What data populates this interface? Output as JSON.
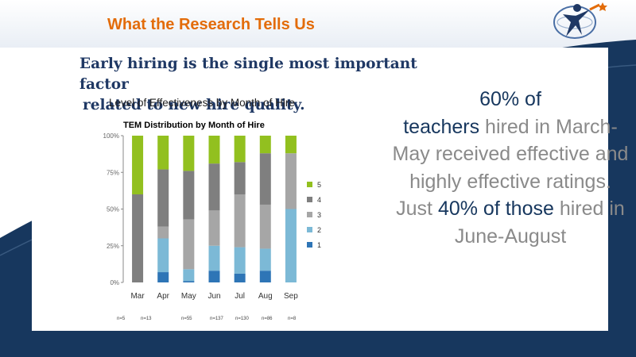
{
  "slide": {
    "title": "What the Research Tells Us",
    "headline_line1": "Early hiring is the single most important factor",
    "headline_line2": "related to new hire quality.",
    "caption": "Level of Effectiveness by Month of Hire"
  },
  "side": {
    "p1": "60% of",
    "p2": "teachers",
    "p3": " hired in March-May received effective and highly effective ratings. Just ",
    "p4": "40% of those",
    "p5": " hired in June-August"
  },
  "colors": {
    "title": "#e36c0a",
    "headline": "#1f3864",
    "navy": "#17375e"
  },
  "chart_data": {
    "type": "bar",
    "stacked": true,
    "title": "TEM Distribution by Month of Hire",
    "categories": [
      "Mar",
      "Apr",
      "May",
      "Jun",
      "Jul",
      "Aug",
      "Sep"
    ],
    "y_ticks": [
      "100%",
      "75%",
      "50%",
      "25%",
      "0%"
    ],
    "ylim": [
      0,
      100
    ],
    "n_labels": [
      "n=5",
      "n=13",
      "n=55",
      "n=137",
      "n=130",
      "n=86",
      "n=8"
    ],
    "series": [
      {
        "name": "1",
        "color": "#2e75b6",
        "values": [
          0,
          7,
          1,
          8,
          6,
          8,
          0
        ]
      },
      {
        "name": "2",
        "color": "#7cb9d6",
        "values": [
          0,
          23,
          8,
          17,
          18,
          15,
          50
        ]
      },
      {
        "name": "3",
        "color": "#a6a6a6",
        "values": [
          0,
          8,
          34,
          24,
          36,
          30,
          38
        ]
      },
      {
        "name": "4",
        "color": "#7f7f7f",
        "values": [
          60,
          39,
          33,
          32,
          22,
          35,
          0
        ]
      },
      {
        "name": "5",
        "color": "#92c01f",
        "values": [
          40,
          23,
          24,
          19,
          18,
          12,
          12
        ]
      }
    ],
    "legend_position": "right"
  }
}
